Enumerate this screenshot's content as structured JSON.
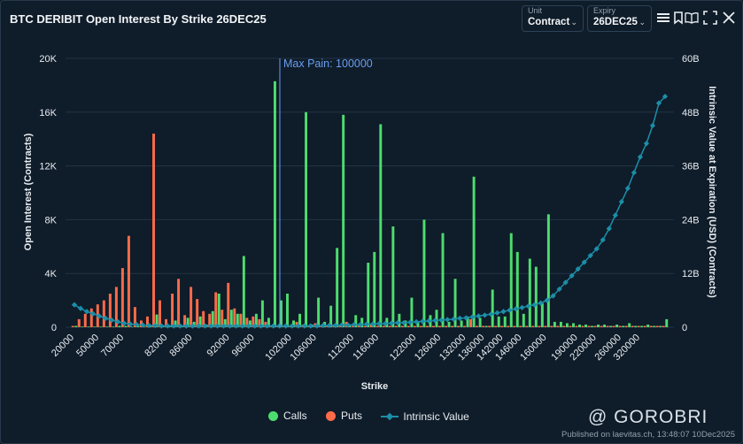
{
  "header": {
    "title": "BTC DERIBIT Open Interest By Strike 26DEC25",
    "unit_label": "Unit",
    "unit_value": "Contract",
    "expiry_label": "Expiry",
    "expiry_value": "26DEC25"
  },
  "footer": {
    "watermark": "@ GOROBRI",
    "published": "Published on laevitas.ch, 13:48:07 10Dec2025"
  },
  "colors": {
    "calls": "#4ddc6f",
    "puts": "#ff6b4a",
    "intrinsic": "#1c8ea8",
    "max_pain": "#6a9ef0"
  },
  "chart_data": {
    "type": "bar",
    "title": "BTC DERIBIT Open Interest By Strike 26DEC25",
    "xlabel": "Strike",
    "ylabel": "Open Interest (Contracts)",
    "y2label": "Intrinsic Value at Expiration (USD) (Contracts)",
    "ylim": [
      0,
      20000
    ],
    "y2lim": [
      0,
      60
    ],
    "yticks": [
      "0",
      "4K",
      "8K",
      "12K",
      "16K",
      "20K"
    ],
    "y2ticks": [
      "0",
      "12B",
      "24B",
      "36B",
      "48B",
      "60B"
    ],
    "xticks": [
      "20000",
      "50000",
      "70000",
      "82000",
      "86000",
      "92000",
      "96000",
      "102000",
      "106000",
      "112000",
      "116000",
      "122000",
      "126000",
      "132000",
      "136000",
      "142000",
      "146000",
      "160000",
      "190000",
      "220000",
      "260000",
      "320000"
    ],
    "max_pain_label": "Max Pain: 100000",
    "max_pain_strike": "100000",
    "legend": [
      "Calls",
      "Puts",
      "Intrinsic Value"
    ],
    "categories": [
      "20000",
      "30000",
      "40000",
      "45000",
      "50000",
      "55000",
      "60000",
      "65000",
      "70000",
      "72000",
      "74000",
      "75000",
      "76000",
      "78000",
      "80000",
      "82000",
      "83000",
      "84000",
      "85000",
      "86000",
      "87000",
      "88000",
      "89000",
      "90000",
      "91000",
      "92000",
      "93000",
      "94000",
      "95000",
      "96000",
      "97000",
      "98000",
      "99000",
      "100000",
      "101000",
      "102000",
      "103000",
      "104000",
      "105000",
      "106000",
      "107000",
      "108000",
      "109000",
      "110000",
      "111000",
      "112000",
      "113000",
      "114000",
      "115000",
      "116000",
      "117000",
      "118000",
      "119000",
      "120000",
      "121000",
      "122000",
      "123000",
      "124000",
      "125000",
      "126000",
      "127000",
      "128000",
      "130000",
      "132000",
      "134000",
      "135000",
      "136000",
      "138000",
      "140000",
      "142000",
      "144000",
      "145000",
      "146000",
      "148000",
      "150000",
      "155000",
      "160000",
      "165000",
      "170000",
      "175000",
      "180000",
      "190000",
      "200000",
      "210000",
      "220000",
      "230000",
      "240000",
      "250000",
      "260000",
      "280000",
      "300000",
      "320000",
      "340000",
      "360000",
      "380000",
      "400000"
    ],
    "series": [
      {
        "name": "Calls",
        "values": [
          100,
          50,
          50,
          50,
          50,
          50,
          50,
          100,
          100,
          50,
          100,
          50,
          100,
          950,
          100,
          150,
          500,
          100,
          700,
          400,
          800,
          200,
          1200,
          2500,
          600,
          1300,
          1000,
          5300,
          500,
          1000,
          2000,
          700,
          18300,
          2000,
          2500,
          500,
          1000,
          16000,
          200,
          2200,
          400,
          1600,
          5900,
          15800,
          200,
          900,
          700,
          4800,
          5600,
          15100,
          700,
          7500,
          1000,
          500,
          2200,
          400,
          8000,
          900,
          1300,
          7000,
          400,
          3600,
          500,
          800,
          11200,
          700,
          100,
          2800,
          800,
          800,
          7000,
          5600,
          1000,
          5100,
          4500,
          1800,
          8400,
          400,
          400,
          300,
          300,
          200,
          200,
          100,
          200,
          200,
          100,
          200,
          100,
          300,
          100,
          100,
          200,
          100,
          100,
          600
        ]
      },
      {
        "name": "Puts",
        "values": [
          100,
          600,
          1000,
          1400,
          1700,
          2000,
          2500,
          3000,
          4400,
          6800,
          1500,
          500,
          800,
          14400,
          2000,
          600,
          2500,
          3600,
          900,
          3000,
          2100,
          1200,
          1000,
          2600,
          1300,
          3300,
          1400,
          1000,
          700,
          800,
          600,
          400,
          100,
          100,
          100,
          100,
          400,
          200,
          100,
          300,
          100,
          100,
          200,
          100,
          400,
          100,
          150,
          100,
          200,
          100,
          100,
          100,
          100,
          100,
          100,
          100,
          100,
          100,
          100,
          100,
          100,
          100,
          100,
          100,
          600,
          100,
          100,
          100,
          100,
          100,
          100,
          100,
          100,
          100,
          100,
          100,
          100,
          100,
          100,
          100,
          100,
          100,
          100,
          100,
          100,
          100,
          100,
          100,
          100,
          100,
          100,
          100,
          100,
          100,
          100,
          100
        ]
      },
      {
        "name": "Intrinsic Value",
        "axis": "right",
        "values": [
          5.0,
          4.2,
          3.5,
          3.0,
          2.5,
          2.0,
          1.6,
          1.2,
          0.9,
          0.7,
          0.6,
          0.5,
          0.4,
          0.4,
          0.3,
          0.3,
          0.3,
          0.3,
          0.3,
          0.3,
          0.3,
          0.3,
          0.3,
          0.3,
          0.3,
          0.3,
          0.3,
          0.3,
          0.3,
          0.3,
          0.3,
          0.3,
          0.3,
          0.3,
          0.3,
          0.3,
          0.3,
          0.3,
          0.3,
          0.3,
          0.4,
          0.4,
          0.4,
          0.5,
          0.5,
          0.6,
          0.6,
          0.7,
          0.7,
          0.8,
          0.8,
          0.9,
          1.0,
          1.0,
          1.1,
          1.2,
          1.3,
          1.4,
          1.5,
          1.6,
          1.7,
          1.8,
          2.0,
          2.1,
          2.3,
          2.5,
          2.7,
          2.9,
          3.2,
          3.5,
          3.8,
          4.1,
          4.4,
          4.7,
          5.0,
          5.4,
          6.0,
          7.0,
          8.5,
          10.0,
          11.5,
          13.0,
          14.5,
          16.0,
          17.5,
          19.5,
          22.0,
          25.0,
          28.0,
          31.0,
          34.5,
          38.0,
          41.0,
          45.0,
          50.0,
          51.5
        ]
      }
    ]
  }
}
